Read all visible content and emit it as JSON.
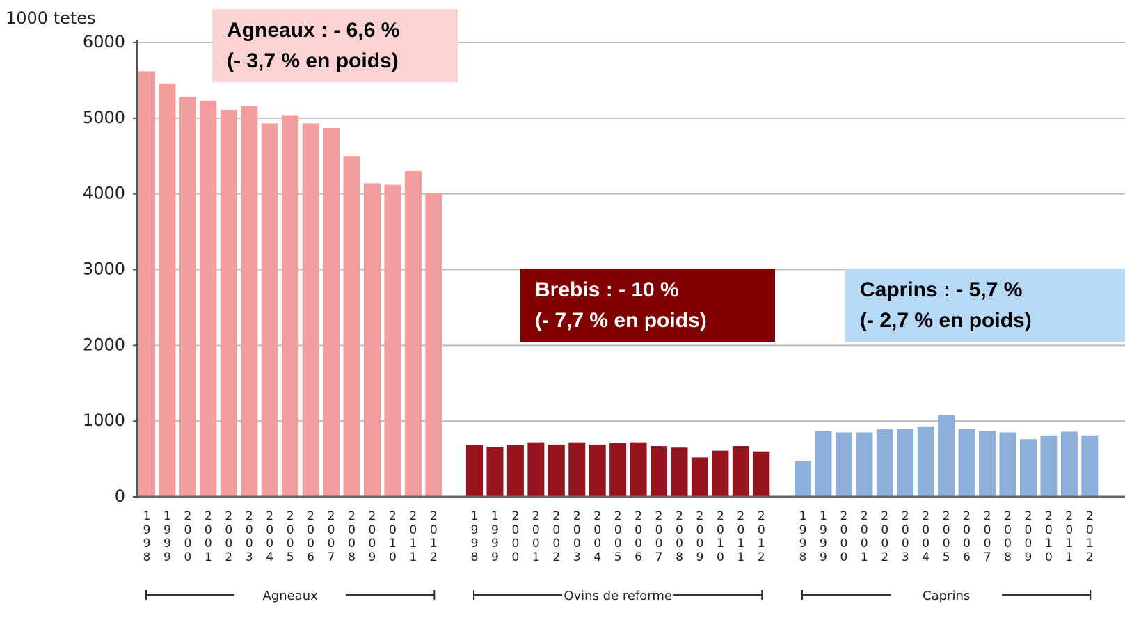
{
  "chart_data": {
    "type": "bar",
    "ylabel": "1000 tetes",
    "categories": [
      "1998",
      "1999",
      "2000",
      "2001",
      "2002",
      "2003",
      "2004",
      "2005",
      "2006",
      "2007",
      "2008",
      "2009",
      "2010",
      "2011",
      "2012"
    ],
    "series": [
      {
        "name": "Agneaux",
        "color": "#f29e9e",
        "values": [
          5620,
          5460,
          5280,
          5230,
          5110,
          5160,
          4930,
          5040,
          4930,
          4870,
          4500,
          4140,
          4120,
          4300,
          4010
        ]
      },
      {
        "name": "Ovins de reforme",
        "color": "#96141e",
        "values": [
          680,
          660,
          680,
          720,
          690,
          720,
          690,
          710,
          720,
          670,
          650,
          520,
          610,
          670,
          600
        ]
      },
      {
        "name": "Caprins",
        "color": "#8eaedb",
        "values": [
          470,
          870,
          850,
          850,
          890,
          900,
          930,
          1080,
          900,
          870,
          850,
          760,
          810,
          860,
          810
        ]
      }
    ],
    "ylim": [
      0,
      6000
    ],
    "yticks": [
      0,
      1000,
      2000,
      3000,
      4000,
      5000,
      6000
    ],
    "grid": true,
    "annotations": [
      {
        "lines": [
          "Agneaux : - 6,6 %",
          "(- 3,7 % en poids)"
        ],
        "color": "#fbd3d3",
        "text_color": "#000000"
      },
      {
        "lines": [
          "Brebis : - 10 %",
          "(- 7,7 % en poids)"
        ],
        "color": "#800000",
        "text_color": "#ffffff"
      },
      {
        "lines": [
          "Caprins : - 5,7 %",
          "(- 2,7 % en poids)"
        ],
        "color": "#b5d9f7",
        "text_color": "#000000"
      }
    ]
  }
}
